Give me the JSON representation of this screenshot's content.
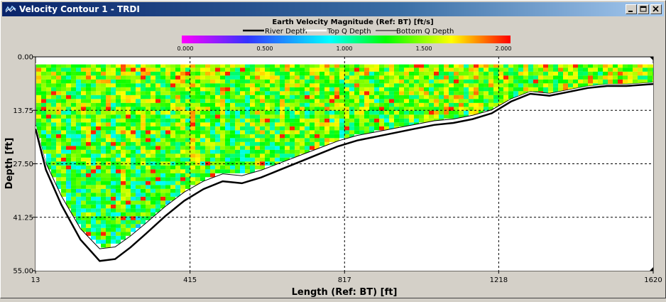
{
  "window": {
    "title": "Velocity Contour 1 - TRDI"
  },
  "chart_data": {
    "type": "heatmap",
    "title": "Earth Velocity Magnitude (Ref: BT) [ft/s]",
    "legend": [
      {
        "label": "River Depth",
        "color": "#000000"
      },
      {
        "label": "Top Q Depth",
        "color": "#ffffff"
      },
      {
        "label": "Bottom Q Depth",
        "color": "#000000"
      }
    ],
    "colorbar": {
      "ticks": [
        "0.000",
        "0.500",
        "1.000",
        "1.500",
        "2.000"
      ],
      "range": [
        0,
        2
      ],
      "stops": [
        "#ff00ff",
        "#3333ff",
        "#00ffff",
        "#00ff00",
        "#ffff00",
        "#ff0000"
      ]
    },
    "xlabel": "Length (Ref: BT) [ft]",
    "ylabel": "Depth [ft]",
    "xticks": [
      "13",
      "415",
      "817",
      "1218",
      "1620"
    ],
    "yticks": [
      "0.00",
      "13.75",
      "27.50",
      "41.25",
      "55.00"
    ],
    "xlim": [
      13,
      1620
    ],
    "ylim": [
      0,
      55
    ],
    "grid": true,
    "river_depth": {
      "x": [
        13,
        40,
        80,
        130,
        180,
        220,
        260,
        300,
        350,
        400,
        450,
        500,
        550,
        600,
        650,
        700,
        750,
        800,
        850,
        900,
        950,
        1000,
        1050,
        1100,
        1150,
        1200,
        1250,
        1300,
        1350,
        1400,
        1450,
        1500,
        1550,
        1620
      ],
      "y": [
        18.5,
        29,
        38,
        47,
        52.5,
        52,
        49,
        45.5,
        41,
        37,
        34,
        32,
        32.5,
        31,
        29,
        27,
        25,
        23,
        21.5,
        20.5,
        19.5,
        18.5,
        17.5,
        17,
        16,
        14.5,
        11.5,
        9.5,
        10,
        9,
        8,
        7.5,
        7.5,
        7
      ]
    },
    "top_q_depth": 1.8,
    "velocity_grid_range": [
      0.9,
      1.9
    ],
    "status_corner": "#000000"
  }
}
